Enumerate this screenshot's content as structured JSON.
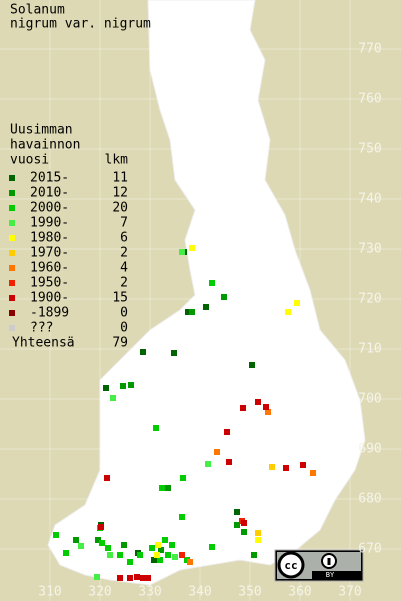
{
  "chart_data": {
    "type": "scatter",
    "title": [
      "Solanum",
      "nigrum var. nigrum"
    ],
    "legend_title": [
      "Uusimman",
      "havainnon",
      "vuosi"
    ],
    "count_label": "lkm",
    "total_label": "Yhteensä",
    "total": 79,
    "badge": "BY",
    "grid": true,
    "xlim": [
      300,
      380
    ],
    "ylim": [
      660,
      780
    ],
    "xticks": [
      310,
      320,
      330,
      340,
      350,
      360,
      370
    ],
    "yticks": [
      670,
      680,
      690,
      700,
      710,
      720,
      730,
      740,
      750,
      760,
      770
    ],
    "series": [
      {
        "name": "2015-",
        "count": 11,
        "color": "#006400",
        "x": [
          336.8,
          328.6,
          334.8,
          321.2,
          341.2,
          320.2,
          327.6,
          350.4,
          347.4,
          337.6,
          330.8
        ],
        "y": [
          729.4,
          709.4,
          709.2,
          702.2,
          718.4,
          674.8,
          669.2,
          706.8,
          677.4,
          717.4,
          667.8
        ]
      },
      {
        "name": "2010-",
        "count": 12,
        "color": "#009900",
        "x": [
          344.8,
          324.6,
          326.2,
          338.4,
          319.6,
          324.8,
          332.2,
          333.6,
          347.4,
          348.8,
          315.2,
          350.8
        ],
        "y": [
          720.4,
          702.6,
          702.8,
          717.4,
          671.8,
          670.8,
          669.8,
          682.2,
          674.8,
          673.4,
          671.8,
          668.8
        ]
      },
      {
        "name": "2000-",
        "count": 20,
        "color": "#00cc00",
        "x": [
          342.4,
          331.2,
          336.6,
          332.4,
          336.4,
          342.4,
          311.2,
          313.2,
          321.6,
          330.4,
          333.0,
          326.0,
          324.0,
          332.0,
          320.0,
          337.4,
          320.4,
          334.4,
          328.0,
          333.6
        ],
        "y": [
          723.2,
          694.2,
          684.2,
          682.2,
          676.4,
          670.4,
          672.8,
          669.2,
          670.2,
          670.2,
          671.8,
          667.4,
          668.8,
          667.8,
          674.2,
          667.8,
          671.2,
          670.8,
          668.8,
          668.8
        ]
      },
      {
        "name": "1990-",
        "count": 7,
        "color": "#44ee44",
        "x": [
          336.4,
          322.6,
          341.6,
          319.4,
          335.0,
          316.2,
          322.0
        ],
        "y": [
          729.4,
          700.2,
          687.0,
          664.4,
          668.4,
          670.6,
          668.8
        ]
      },
      {
        "name": "1980-",
        "count": 6,
        "color": "#ffff00",
        "x": [
          338.4,
          359.4,
          357.6,
          331.6,
          331.4,
          351.6
        ],
        "y": [
          730.2,
          719.2,
          717.4,
          670.8,
          668.8,
          671.8
        ]
      },
      {
        "name": "1970-",
        "count": 2,
        "color": "#ffcc00",
        "x": [
          354.4,
          351.6
        ],
        "y": [
          686.4,
          673.2
        ]
      },
      {
        "name": "1960-",
        "count": 4,
        "color": "#ff7700",
        "x": [
          343.4,
          353.6,
          362.6,
          338.0
        ],
        "y": [
          689.4,
          697.4,
          685.2,
          667.4
        ]
      },
      {
        "name": "1950-",
        "count": 2,
        "color": "#ee2200",
        "x": [
          348.4,
          336.4
        ],
        "y": [
          675.6,
          668.8
        ]
      },
      {
        "name": "1900-",
        "count": 15,
        "color": "#cc0000",
        "x": [
          348.6,
          351.6,
          345.4,
          353.2,
          357.2,
          360.6,
          321.4,
          327.4,
          328.6,
          324.0,
          345.8,
          348.8,
          329.6,
          320.2,
          326.0
        ],
        "y": [
          698.2,
          699.4,
          693.4,
          698.4,
          686.2,
          686.8,
          684.2,
          664.4,
          664.2,
          664.2,
          687.4,
          675.2,
          664.2,
          674.4,
          664.2
        ]
      },
      {
        "name": "-1899",
        "count": 0,
        "color": "#880000",
        "x": [],
        "y": []
      },
      {
        "name": "???",
        "count": 0,
        "color": "#cccccc",
        "x": [],
        "y": []
      }
    ]
  }
}
